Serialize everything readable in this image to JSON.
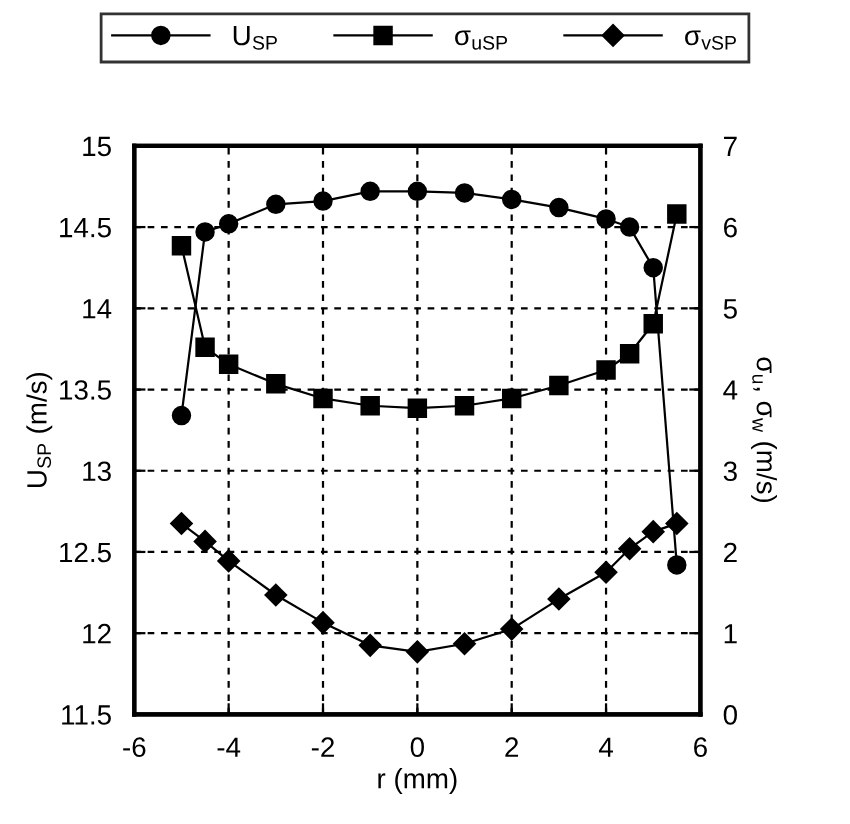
{
  "chart_data": {
    "type": "line",
    "xlabel": "r (mm)",
    "ylabel": "U$_{SP}$ (m/s)",
    "y2label": "σ$_{u}$, σ$_{w}$ (m/s)",
    "xlim": [
      -6,
      6
    ],
    "xticks": [
      -6,
      -4,
      -2,
      0,
      2,
      4,
      6
    ],
    "ylim": [
      11.5,
      15
    ],
    "yticks": [
      11.5,
      12,
      12.5,
      13,
      13.5,
      14,
      14.5,
      15
    ],
    "y2lim": [
      0,
      7
    ],
    "y2ticks": [
      0,
      1,
      2,
      3,
      4,
      5,
      6,
      7
    ],
    "grid": true,
    "legend": "top",
    "line_style": "solid",
    "series": [
      {
        "name": "U$_{SP}$",
        "color": "#000000",
        "marker": "circle",
        "x": [
          -5,
          -4.5,
          -4,
          -3,
          -2,
          -1,
          0,
          1,
          2,
          3,
          4,
          4.5,
          5,
          5.5
        ],
        "values": [
          13.34,
          14.47,
          14.52,
          14.64,
          14.66,
          14.72,
          14.72,
          14.71,
          14.67,
          14.62,
          14.55,
          14.5,
          14.25,
          12.42
        ]
      },
      {
        "name": "σ$_{uSP}$",
        "color": "#000000",
        "marker": "square",
        "axis": "y2",
        "x": [
          -5,
          -4.5,
          -4,
          -3,
          -2,
          -1,
          0,
          1,
          2,
          3,
          4,
          4.5,
          5,
          5.5
        ],
        "values": [
          5.77,
          4.52,
          4.31,
          4.07,
          3.89,
          3.8,
          3.77,
          3.8,
          3.89,
          4.05,
          4.24,
          4.44,
          4.81,
          6.16
        ]
      },
      {
        "name": "σ$_{vSP}$",
        "color": "#000000",
        "marker": "diamond",
        "axis": "y2",
        "x": [
          -5,
          -4.5,
          -4,
          -3,
          -2,
          -1,
          0,
          1,
          2,
          3,
          4,
          4.5,
          5,
          5.5
        ],
        "values": [
          2.35,
          2.13,
          1.89,
          1.47,
          1.13,
          0.85,
          0.77,
          0.87,
          1.05,
          1.42,
          1.75,
          2.04,
          2.25,
          2.35
        ]
      }
    ]
  }
}
